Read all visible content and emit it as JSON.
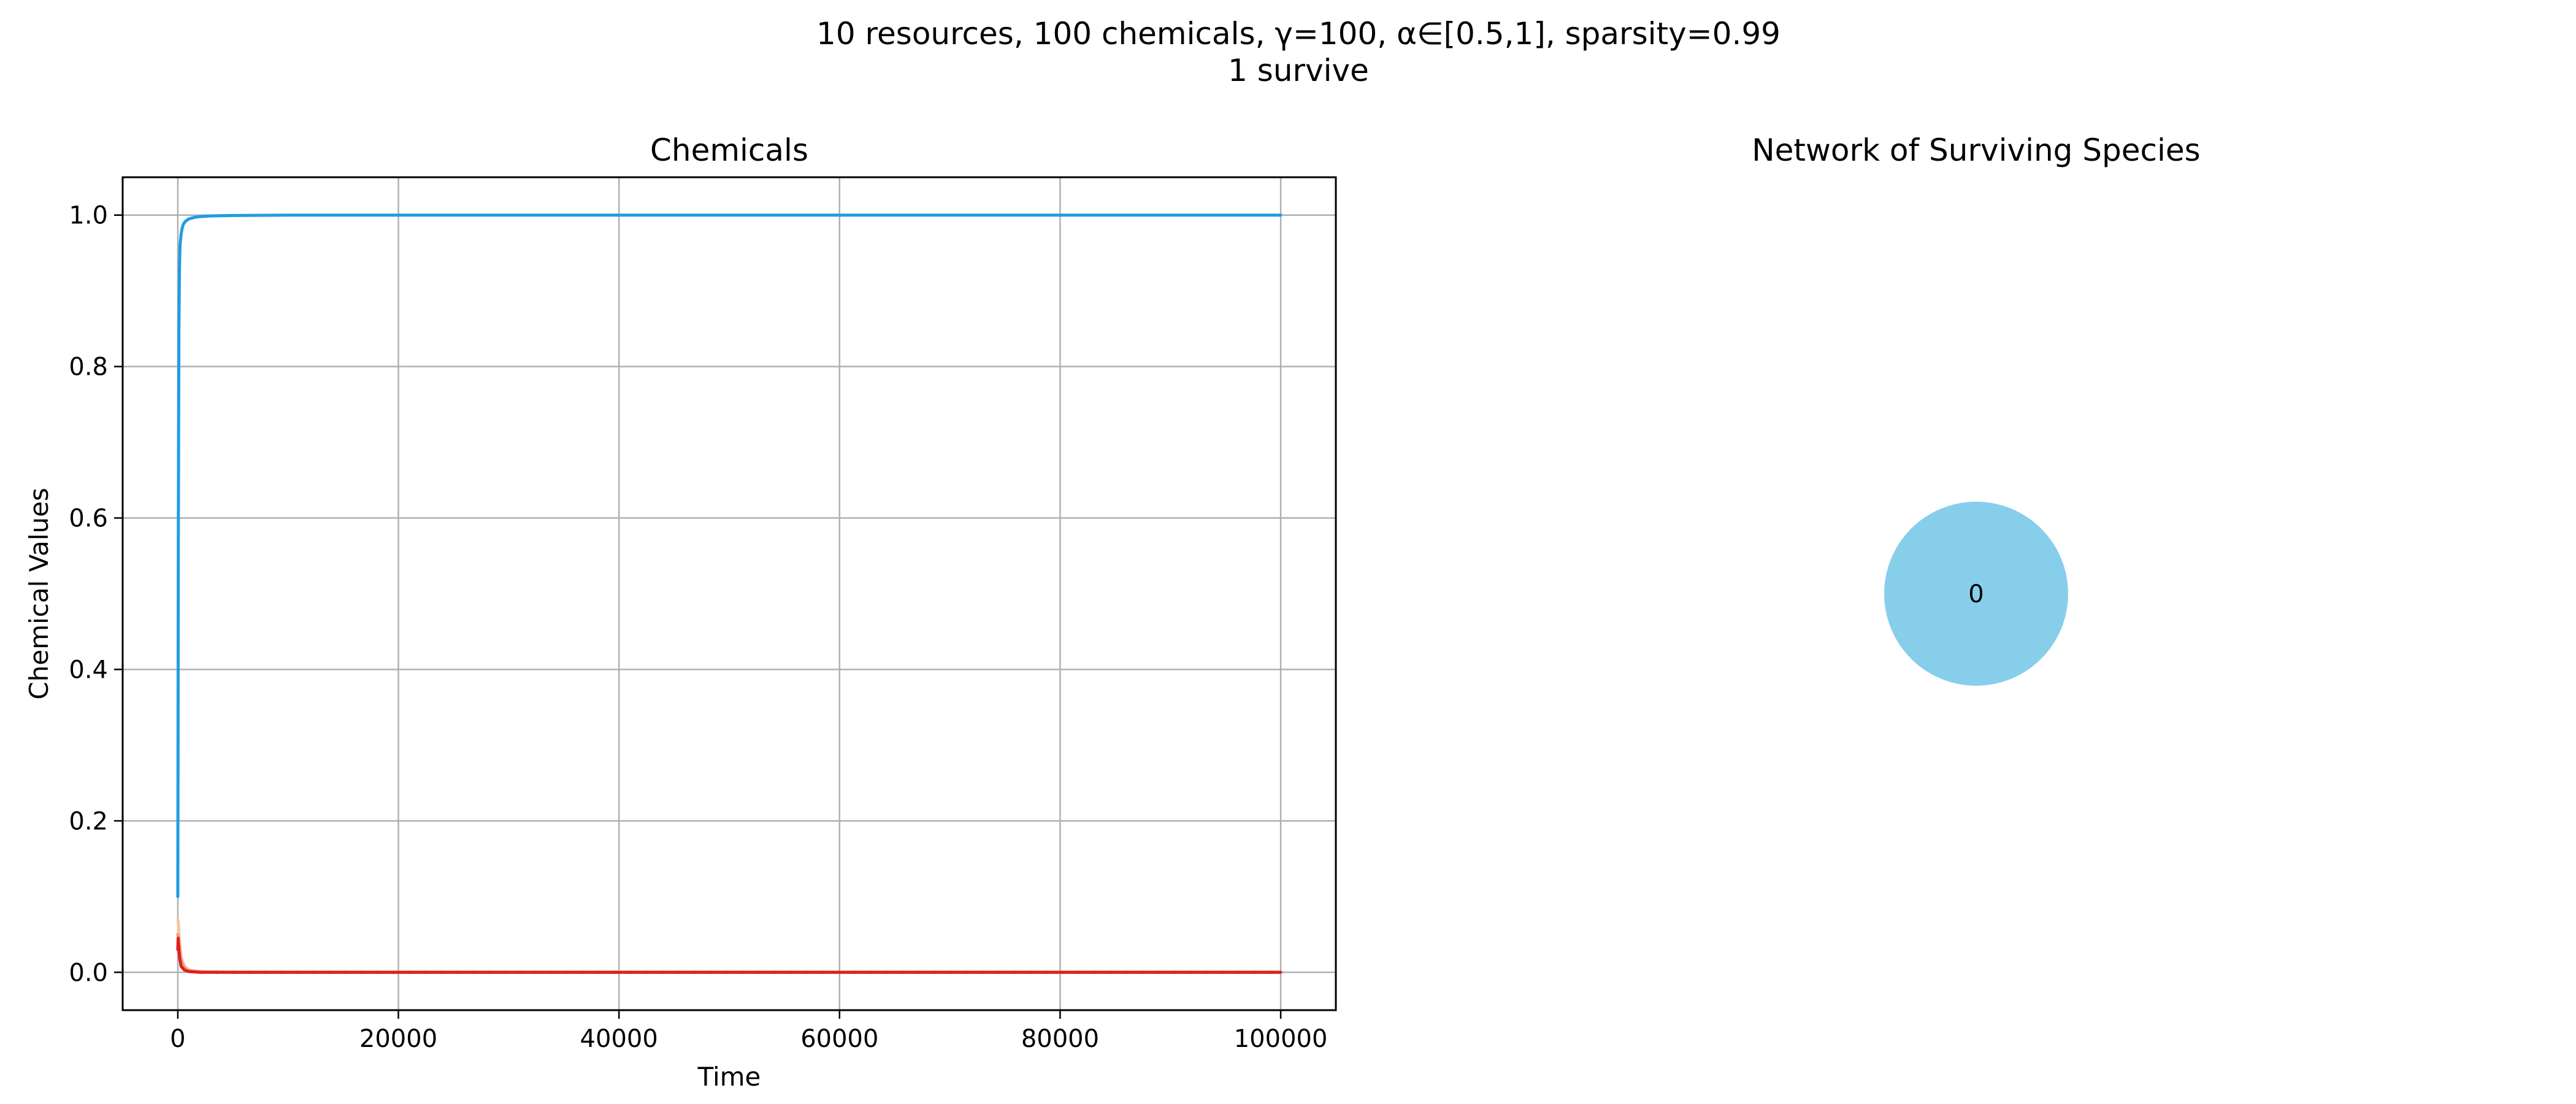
{
  "figure": {
    "suptitle_line1": "10 resources, 100 chemicals, γ=100, α∈[0.5,1], sparsity=0.99",
    "suptitle_line2": "1 survive"
  },
  "chart_data": [
    {
      "type": "line",
      "title": "Chemicals",
      "xlabel": "Time",
      "ylabel": "Chemical Values",
      "xlim": [
        -5000,
        105000
      ],
      "ylim": [
        -0.05,
        1.05
      ],
      "xticks": [
        0,
        20000,
        40000,
        60000,
        80000,
        100000
      ],
      "xtick_labels": [
        "0",
        "20000",
        "40000",
        "60000",
        "80000",
        "100000"
      ],
      "yticks": [
        0.0,
        0.2,
        0.4,
        0.6,
        0.8,
        1.0
      ],
      "ytick_labels": [
        "0.0",
        "0.2",
        "0.4",
        "0.6",
        "0.8",
        "1.0"
      ],
      "grid": true,
      "series": [
        {
          "color": "#f2c8a0",
          "x": [
            0,
            50,
            150,
            300,
            600,
            1000,
            2000,
            5000,
            10000,
            100000
          ],
          "y": [
            0.07,
            0.065,
            0.04,
            0.02,
            0.008,
            0.003,
            0.001,
            0.0,
            0.0,
            0.0
          ]
        },
        {
          "color": "#e8a070",
          "x": [
            0,
            50,
            150,
            300,
            600,
            1000,
            2000,
            5000,
            100000
          ],
          "y": [
            0.05,
            0.045,
            0.03,
            0.015,
            0.006,
            0.002,
            0.0005,
            0.0,
            0.0
          ]
        },
        {
          "color": "#e02020",
          "x": [
            0,
            30,
            80,
            150,
            300,
            600,
            1000,
            2000,
            5000,
            100000
          ],
          "y": [
            0.03,
            0.045,
            0.035,
            0.02,
            0.008,
            0.003,
            0.001,
            0.0,
            0.0,
            0.0
          ],
          "style": "dotted"
        },
        {
          "color": "#1f9ee0",
          "x": [
            0,
            20,
            50,
            100,
            150,
            200,
            300,
            400,
            500,
            700,
            1000,
            1500,
            2000,
            3000,
            5000,
            10000,
            20000,
            50000,
            100000
          ],
          "y": [
            0.1,
            0.3,
            0.6,
            0.85,
            0.93,
            0.96,
            0.975,
            0.983,
            0.988,
            0.992,
            0.995,
            0.997,
            0.998,
            0.999,
            0.9995,
            1.0,
            1.0,
            1.0,
            1.0
          ]
        }
      ]
    },
    {
      "type": "network",
      "title": "Network of Surviving Species",
      "nodes": [
        {
          "label": "0",
          "color": "#87ceeb"
        }
      ],
      "edges": []
    }
  ]
}
